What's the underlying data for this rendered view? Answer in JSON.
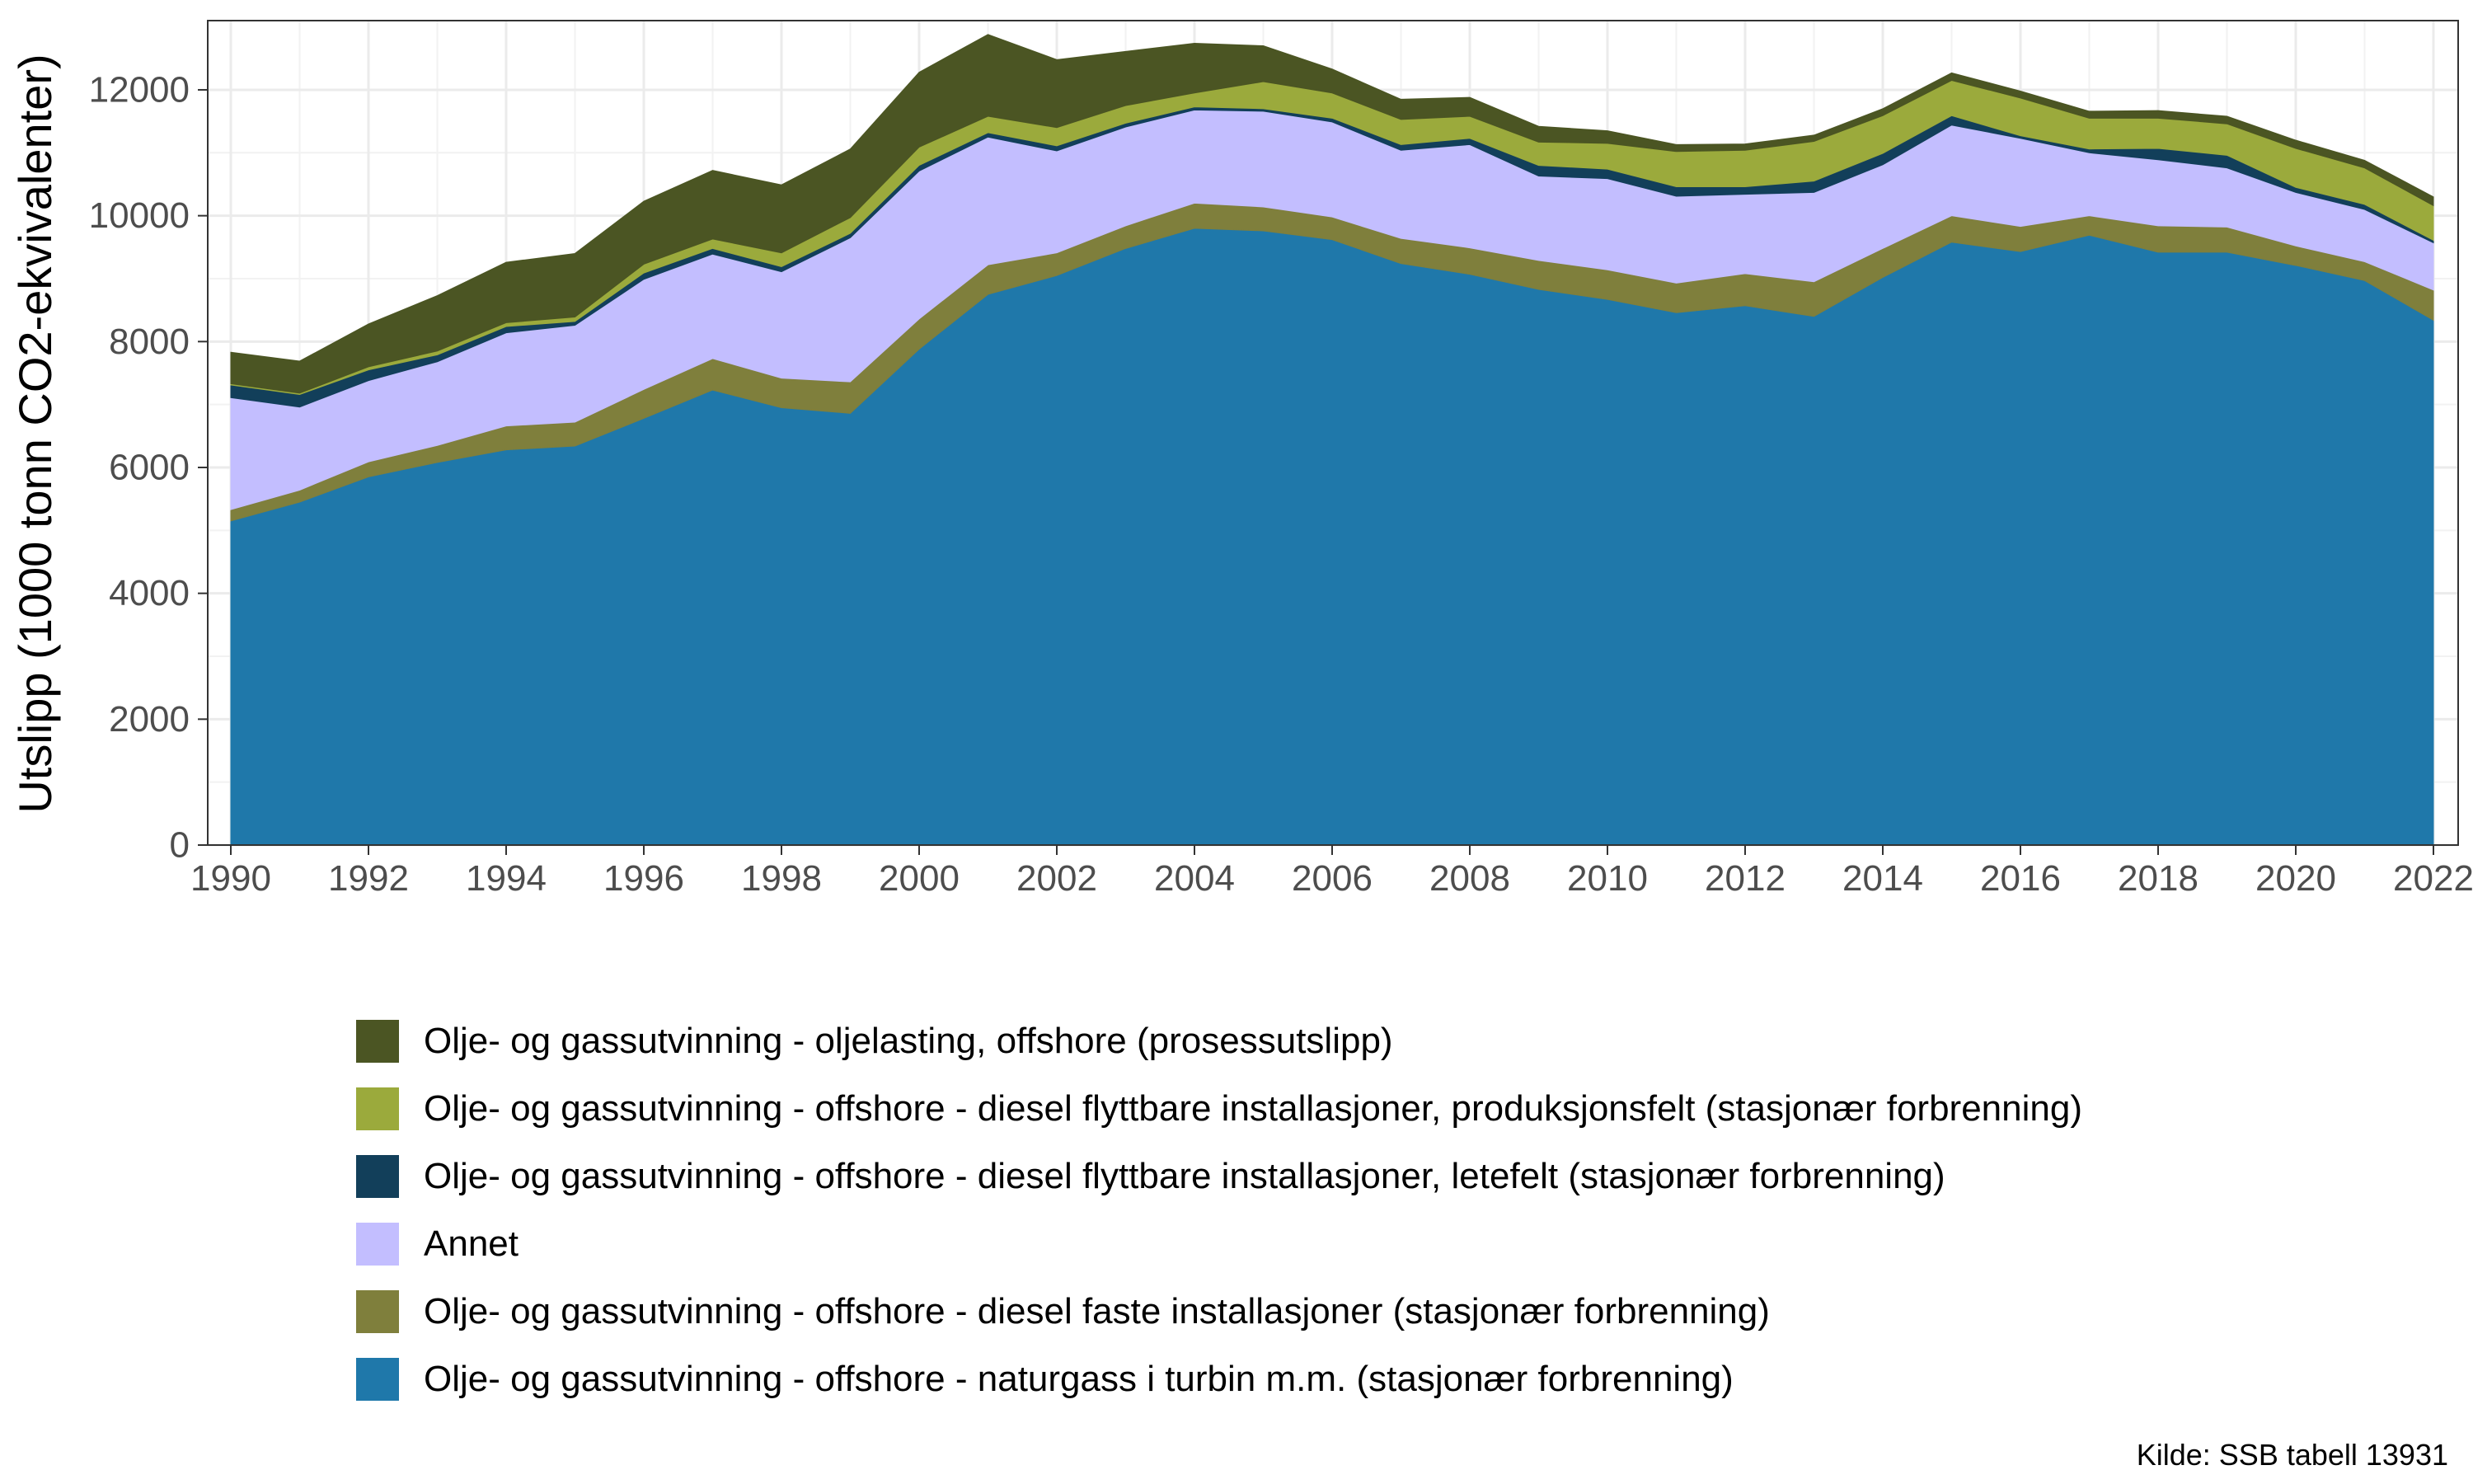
{
  "chart_data": {
    "type": "area",
    "stacked": true,
    "ylabel": "Utslipp (1000 tonn CO2-ekvivalenter)",
    "xlabel": "",
    "ylim": [
      0,
      13100
    ],
    "xlim": [
      1990,
      2022
    ],
    "x_ticks": [
      1990,
      1992,
      1994,
      1996,
      1998,
      2000,
      2002,
      2004,
      2006,
      2008,
      2010,
      2012,
      2014,
      2016,
      2018,
      2020,
      2022
    ],
    "y_ticks": [
      0,
      2000,
      4000,
      6000,
      8000,
      10000,
      12000
    ],
    "grid": true,
    "legend_position": "bottom",
    "x": [
      1990,
      1991,
      1992,
      1993,
      1994,
      1995,
      1996,
      1997,
      1998,
      1999,
      2000,
      2001,
      2002,
      2003,
      2004,
      2005,
      2006,
      2007,
      2008,
      2009,
      2010,
      2011,
      2012,
      2013,
      2014,
      2015,
      2016,
      2017,
      2018,
      2019,
      2020,
      2021,
      2022
    ],
    "series": [
      {
        "name": "Olje- og gassutvinning - offshore - naturgass i turbin m.m. (stasjonær forbrenning)",
        "color": "#1F78AA",
        "values": [
          5150,
          5450,
          5850,
          6080,
          6280,
          6340,
          6780,
          7230,
          6950,
          6860,
          7880,
          8750,
          9050,
          9480,
          9800,
          9760,
          9620,
          9240,
          9070,
          8830,
          8670,
          8460,
          8570,
          8400,
          9020,
          9580,
          9430,
          9690,
          9420,
          9420,
          9210,
          8970,
          8340
        ]
      },
      {
        "name": "Olje- og gassutvinning - offshore - diesel faste installasjoner (stasjonær forbrenning)",
        "color": "#7F7F3C",
        "values": [
          180,
          190,
          240,
          270,
          380,
          380,
          460,
          500,
          470,
          500,
          480,
          470,
          360,
          360,
          400,
          380,
          360,
          400,
          420,
          460,
          470,
          470,
          510,
          550,
          460,
          420,
          400,
          310,
          420,
          400,
          310,
          300,
          480
        ]
      },
      {
        "name": "Annet",
        "color": "#C3BEFF",
        "values": [
          1780,
          1320,
          1290,
          1330,
          1480,
          1540,
          1750,
          1660,
          1690,
          2290,
          2350,
          2030,
          1620,
          1570,
          1480,
          1520,
          1510,
          1400,
          1640,
          1340,
          1450,
          1380,
          1260,
          1420,
          1330,
          1440,
          1400,
          1000,
          1050,
          940,
          850,
          830,
          750
        ]
      },
      {
        "name": "Olje- og gassutvinning - offshore - diesel flyttbare installasjoner, letefelt (stasjonær forbrenning)",
        "color": "#123F5A",
        "values": [
          200,
          200,
          170,
          110,
          100,
          60,
          100,
          90,
          80,
          70,
          90,
          70,
          80,
          60,
          50,
          40,
          60,
          90,
          100,
          170,
          150,
          150,
          120,
          180,
          180,
          150,
          40,
          60,
          180,
          200,
          80,
          80,
          40
        ]
      },
      {
        "name": "Olje- og gassutvinning - offshore - diesel flyttbare installasjoner, produksjonsfelt (stasjonær forbrenning)",
        "color": "#9BAA3C",
        "values": [
          20,
          20,
          50,
          60,
          60,
          70,
          140,
          150,
          220,
          250,
          290,
          260,
          290,
          280,
          220,
          430,
          400,
          400,
          350,
          370,
          410,
          560,
          580,
          630,
          600,
          560,
          600,
          490,
          480,
          500,
          620,
          580,
          550
        ]
      },
      {
        "name": "Olje- og gassutvinning - oljelasting, offshore (prosessutslipp)",
        "color": "#4B5523",
        "values": [
          500,
          510,
          680,
          880,
          960,
          1010,
          1000,
          1090,
          1080,
          1090,
          1190,
          1300,
          1080,
          860,
          790,
          570,
          380,
          320,
          300,
          250,
          200,
          110,
          100,
          100,
          110,
          120,
          110,
          110,
          120,
          120,
          130,
          120,
          140
        ]
      }
    ],
    "source": "Kilde: SSB tabell 13931"
  }
}
